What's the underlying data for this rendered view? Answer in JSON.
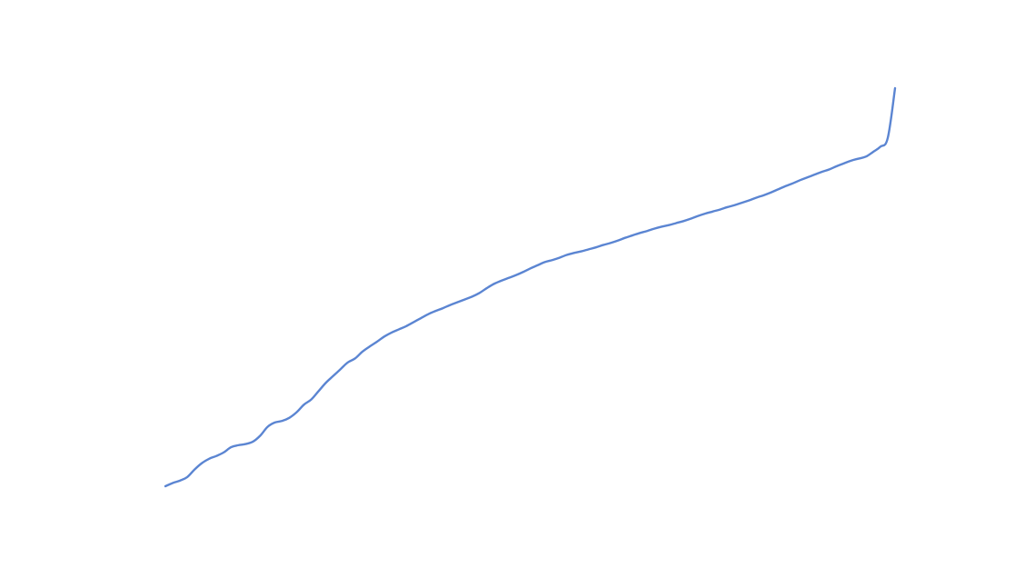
{
  "chart_data": {
    "type": "line",
    "title": "",
    "xlabel": "",
    "ylabel": "",
    "grid": false,
    "legend": "none",
    "axes_visible": false,
    "color": "#5b85d2",
    "xlim": [
      0,
      100
    ],
    "ylim": [
      0,
      100
    ],
    "series": [
      {
        "x": [
          0,
          1,
          2,
          3,
          4,
          5,
          6,
          7,
          8,
          9,
          10,
          11,
          12,
          13,
          14,
          15,
          16,
          17,
          18,
          19,
          20,
          21,
          22,
          23,
          24,
          25,
          26,
          27,
          28,
          29,
          30,
          31,
          32,
          33,
          34,
          35,
          36,
          37,
          38,
          39,
          40,
          41,
          42,
          43,
          44,
          45,
          46,
          47,
          48,
          49,
          50,
          51,
          52,
          53,
          54,
          55,
          56,
          57,
          58,
          59,
          60,
          61,
          62,
          63,
          64,
          65,
          66,
          67,
          68,
          69,
          70,
          71,
          72,
          73,
          74,
          75,
          76,
          77,
          78,
          79,
          80,
          81,
          82,
          83,
          84,
          85,
          86,
          87,
          88,
          89,
          90,
          91,
          92,
          93,
          94,
          95,
          96,
          97,
          98,
          99,
          100
        ],
        "y": [
          0,
          0.8,
          1.4,
          2.3,
          4.2,
          5.8,
          6.9,
          7.6,
          8.5,
          9.8,
          10.3,
          10.6,
          11.2,
          12.7,
          14.9,
          16.0,
          16.4,
          17.2,
          18.6,
          20.5,
          21.8,
          23.9,
          26.0,
          27.7,
          29.4,
          31.1,
          32.1,
          33.8,
          35.1,
          36.3,
          37.6,
          38.6,
          39.4,
          40.2,
          41.2,
          42.2,
          43.2,
          44.0,
          44.7,
          45.5,
          46.2,
          46.9,
          47.6,
          48.5,
          49.7,
          50.8,
          51.6,
          52.3,
          53.0,
          53.8,
          54.7,
          55.5,
          56.3,
          56.8,
          57.4,
          58.1,
          58.6,
          59.0,
          59.5,
          60.0,
          60.6,
          61.1,
          61.7,
          62.4,
          63.0,
          63.6,
          64.1,
          64.7,
          65.2,
          65.6,
          66.1,
          66.6,
          67.2,
          67.9,
          68.5,
          69.0,
          69.5,
          70.1,
          70.6,
          71.2,
          71.8,
          72.5,
          73.1,
          73.8,
          74.6,
          75.4,
          76.1,
          76.9,
          77.6,
          78.3,
          79.0,
          79.6,
          80.4,
          81.1,
          81.8,
          82.3,
          82.8,
          84.0,
          85.3,
          87.5,
          100
        ]
      }
    ]
  }
}
